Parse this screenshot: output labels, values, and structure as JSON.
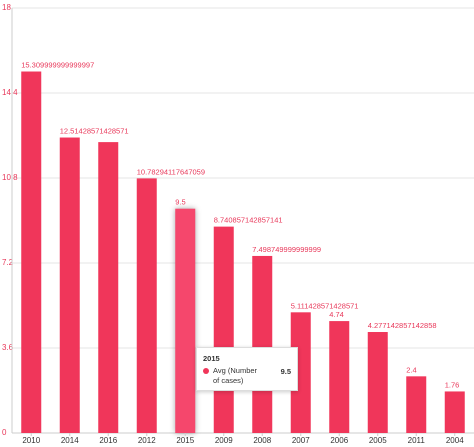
{
  "chart_data": {
    "type": "bar",
    "color": "#f0365a",
    "categories": [
      "2010",
      "2014",
      "2016",
      "2012",
      "2015",
      "2009",
      "2008",
      "2007",
      "2006",
      "2005",
      "2011",
      "2004"
    ],
    "values": [
      15.309999999999997,
      12.51428571428571,
      12.32,
      10.78294117647059,
      9.5,
      8.740857142857141,
      7.498749999999999,
      5.111428571428571,
      4.74,
      4.277142857142858,
      2.4,
      1.76
    ],
    "value_labels": [
      "15.309999999999997",
      "12.51428571428571",
      null,
      "10.78294117647059",
      "9.5",
      "8.740857142857141",
      "7.498749999999999",
      "5.111428571428571",
      "4.74",
      "4.277142857142858",
      "2.4",
      "1.76"
    ],
    "ylim": [
      0,
      18
    ],
    "yticks": [
      0,
      3.6,
      7.2,
      10.8,
      14.4,
      18
    ],
    "grid": true,
    "tooltip": {
      "title": "2015",
      "series_name": "Avg (Number of cases)",
      "value": 9.5
    }
  }
}
